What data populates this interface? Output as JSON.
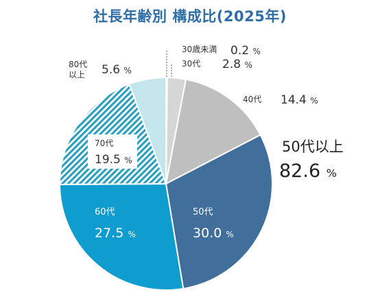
{
  "chart_data": {
    "type": "pie",
    "title": "社長年齢別 構成比(2025年)",
    "categories": [
      "30歳未満",
      "30代",
      "40代",
      "50代",
      "60代",
      "70代",
      "80代以上"
    ],
    "values": [
      0.2,
      2.8,
      14.4,
      30.0,
      27.5,
      19.5,
      5.6
    ],
    "value_labels": [
      "0.2",
      "2.8",
      "14.4",
      "30.0",
      "27.5",
      "19.5",
      "5.6"
    ],
    "unit": "%",
    "colors": [
      "#d6d6d6",
      "#d6d6d6",
      "#bfbfbf",
      "#3f6f9a",
      "#0f9ccf",
      "#2ba0bf",
      "#c3e6ec"
    ],
    "patterns": [
      "solid",
      "solid",
      "solid",
      "solid",
      "solid",
      "hatch",
      "solid"
    ],
    "group_label": {
      "category": "50代以上",
      "value": "82.6",
      "unit": "%"
    }
  }
}
